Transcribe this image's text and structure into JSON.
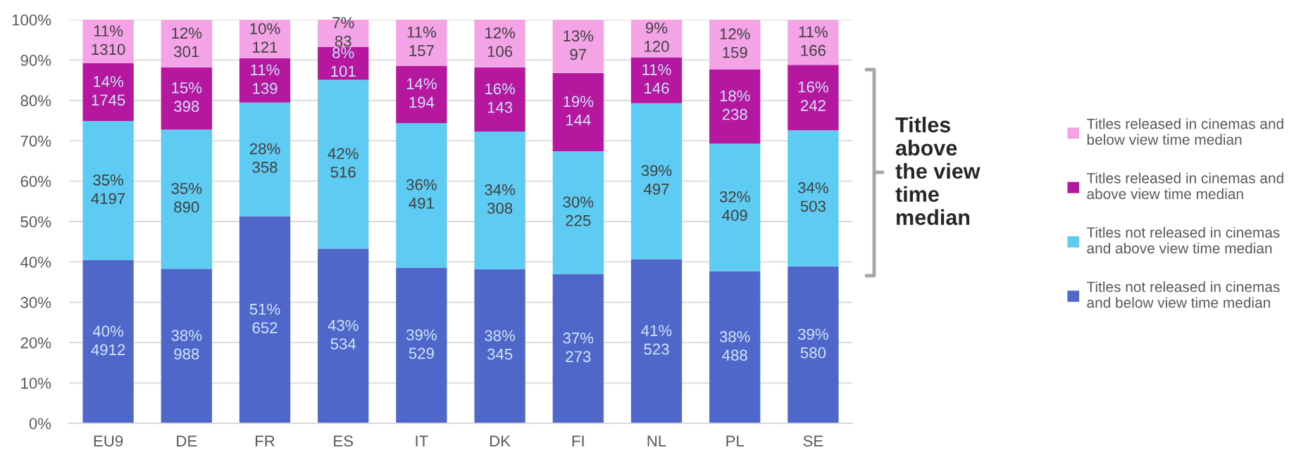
{
  "chart_data": {
    "type": "bar",
    "stacked": true,
    "categories": [
      "EU9",
      "DE",
      "FR",
      "ES",
      "IT",
      "DK",
      "FI",
      "NL",
      "PL",
      "SE"
    ],
    "series": [
      {
        "name": "Titles not released in cinemas and below view time median",
        "color": "#4f67c8",
        "values": [
          40.4,
          38.3,
          51.3,
          43.3,
          38.6,
          38.2,
          37.0,
          40.7,
          37.7,
          38.9
        ],
        "value_labels": [
          "40%\n4912",
          "38%\n988",
          "51%\n652",
          "43%\n534",
          "39%\n529",
          "38%\n345",
          "37%\n273",
          "41%\n523",
          "38%\n488",
          "39%\n580"
        ]
      },
      {
        "name": "Titles not released in cinemas and above view time median",
        "color": "#5ecbf2",
        "values": [
          34.5,
          34.5,
          28.2,
          41.8,
          35.8,
          34.1,
          30.4,
          38.6,
          31.6,
          33.7
        ],
        "value_labels": [
          "35%\n4197",
          "35%\n890",
          "28%\n358",
          "42%\n516",
          "36%\n491",
          "34%\n308",
          "30%\n225",
          "39%\n497",
          "32%\n409",
          "34%\n503"
        ]
      },
      {
        "name": "Titles released in cinemas and above view time median",
        "color": "#b5179e",
        "values": [
          14.3,
          15.4,
          10.9,
          8.2,
          14.2,
          15.9,
          19.4,
          11.4,
          18.4,
          16.2
        ],
        "value_labels": [
          "14%\n1745",
          "15%\n398",
          "11%\n139",
          "8%\n101",
          "14%\n194",
          "16%\n143",
          "19%\n144",
          "11%\n146",
          "18%\n238",
          "16%\n242"
        ]
      },
      {
        "name": "Titles released in cinemas and below view time median",
        "color": "#f3a3e6",
        "values": [
          10.8,
          11.7,
          9.5,
          6.7,
          11.4,
          11.8,
          13.1,
          9.3,
          12.3,
          11.1
        ],
        "value_labels": [
          "11%\n1310",
          "12%\n301",
          "10%\n121",
          "7%\n83",
          "11%\n157",
          "12%\n106",
          "13%\n97",
          "9%\n120",
          "12%\n159",
          "11%\n166"
        ]
      }
    ],
    "ylim": [
      0,
      100
    ],
    "yticks": [
      {
        "value": 0,
        "label": "0%"
      },
      {
        "value": 10,
        "label": "10%"
      },
      {
        "value": 20,
        "label": "20%"
      },
      {
        "value": 30,
        "label": "30%"
      },
      {
        "value": 40,
        "label": "40%"
      },
      {
        "value": 50,
        "label": "50%"
      },
      {
        "value": 60,
        "label": "60%"
      },
      {
        "value": 70,
        "label": "70%"
      },
      {
        "value": 80,
        "label": "80%"
      },
      {
        "value": 90,
        "label": "90%"
      },
      {
        "value": 100,
        "label": "100%"
      }
    ],
    "grid": "y",
    "legend": "right",
    "annotations": [
      "Titles above the view time median"
    ]
  }
}
